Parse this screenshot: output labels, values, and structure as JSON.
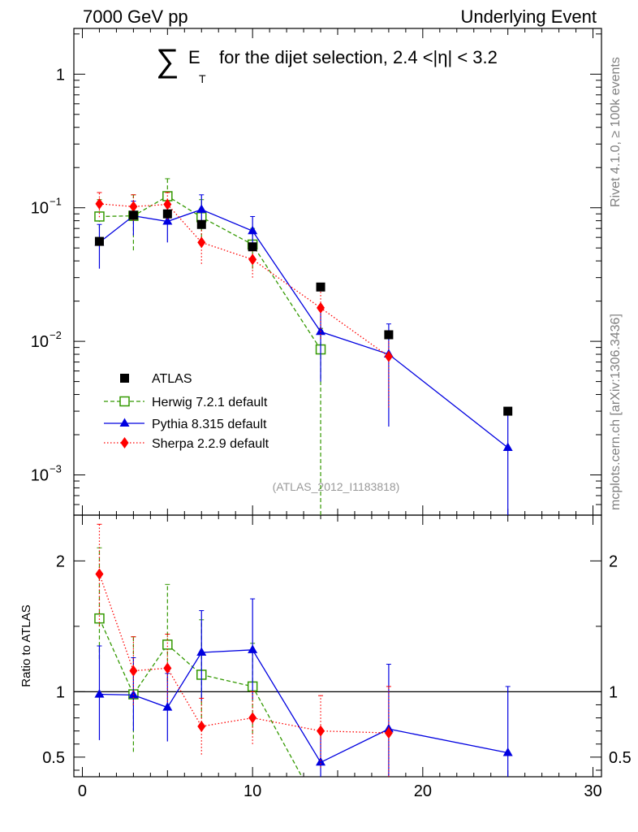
{
  "header": {
    "left": "7000 GeV pp",
    "right": "Underlying Event"
  },
  "title": {
    "sigma": "∑",
    "e": "E",
    "t": "T",
    "rest": "for the dijet selection, 2.4 <|η| < 3.2"
  },
  "side_labels": {
    "rivet": "Rivet 4.1.0, ≥ 100k events",
    "mcplots": "mcplots.cern.ch [arXiv:1306.3436]"
  },
  "watermark": "(ATLAS_2012_I1183818)",
  "chart_data": [
    {
      "type": "scatter",
      "panel": "main",
      "yscale": "log",
      "xlim": [
        -0.5,
        30.5
      ],
      "ylim": [
        0.0005,
        2.2
      ],
      "ytick_values": [
        0.001,
        0.01,
        0.1,
        1
      ],
      "ytick_labels": [
        {
          "base": "10",
          "exp": "−3"
        },
        {
          "base": "10",
          "exp": "−2"
        },
        {
          "base": "10",
          "exp": "−1"
        },
        {
          "base": "1",
          "exp": ""
        }
      ],
      "series": [
        {
          "name": "ATLAS",
          "color": "#000000",
          "marker": "square-filled",
          "x": [
            1,
            3,
            5,
            7,
            10,
            14,
            18,
            25
          ],
          "y": [
            0.056,
            0.088,
            0.09,
            0.075,
            0.051,
            0.0255,
            0.0112,
            0.003
          ]
        },
        {
          "name": "Herwig 7.2.1 default",
          "color": "#339900",
          "marker": "square-open",
          "line": "dashed",
          "x": [
            1,
            3,
            5,
            7,
            10,
            14
          ],
          "y": [
            0.086,
            0.087,
            0.122,
            0.085,
            0.053,
            0.0087
          ],
          "err_lo": [
            0.07,
            0.048,
            0.098,
            0.06,
            0.035,
            0.0005
          ],
          "err_hi": [
            0.115,
            0.125,
            0.165,
            0.115,
            0.07,
            0.0125
          ]
        },
        {
          "name": "Pythia 8.315 default",
          "color": "#0000e0",
          "marker": "triangle",
          "line": "solid",
          "x": [
            1,
            3,
            5,
            7,
            10,
            14,
            18,
            25
          ],
          "y": [
            0.055,
            0.087,
            0.079,
            0.097,
            0.067,
            0.0118,
            0.008,
            0.0016
          ],
          "err_lo": [
            0.035,
            0.062,
            0.055,
            0.07,
            0.048,
            0.005,
            0.0023,
            0.0005
          ],
          "err_hi": [
            0.075,
            0.112,
            0.105,
            0.125,
            0.086,
            0.018,
            0.0135,
            0.0031
          ]
        },
        {
          "name": "Sherpa 2.2.9 default",
          "color": "#ff0000",
          "marker": "diamond",
          "line": "dotted",
          "x": [
            1,
            3,
            5,
            7,
            10,
            14,
            18
          ],
          "y": [
            0.107,
            0.102,
            0.106,
            0.055,
            0.041,
            0.0178,
            0.0077
          ],
          "err_lo": [
            0.085,
            0.08,
            0.082,
            0.038,
            0.03,
            0.0105,
            0.0032
          ],
          "err_hi": [
            0.13,
            0.125,
            0.13,
            0.072,
            0.052,
            0.025,
            0.012
          ]
        }
      ]
    },
    {
      "type": "scatter",
      "panel": "ratio",
      "ylabel": "Ratio to ATLAS",
      "xlim": [
        -0.5,
        30.5
      ],
      "ylim": [
        0.35,
        2.35
      ],
      "ytick_values": [
        0.5,
        1,
        2
      ],
      "ytick_labels": [
        "0.5",
        "1",
        "2"
      ],
      "xtick_values": [
        0,
        10,
        20,
        30
      ],
      "xtick_labels": [
        "0",
        "10",
        "20",
        "30"
      ],
      "reference_line": 1,
      "series": [
        {
          "name": "Herwig 7.2.1 default",
          "color": "#339900",
          "marker": "square-open",
          "line": "dashed",
          "x": [
            1,
            3,
            5,
            7,
            10,
            12.9
          ],
          "y": [
            1.56,
            0.98,
            1.36,
            1.13,
            1.04,
            0.35
          ],
          "err_lo": [
            1.25,
            0.54,
            1.08,
            0.8,
            0.68,
            0.35
          ],
          "err_hi": [
            2.1,
            1.42,
            1.82,
            1.55,
            1.37,
            0.35
          ],
          "marker_count": 5
        },
        {
          "name": "Pythia 8.315 default",
          "color": "#0000e0",
          "marker": "triangle",
          "line": "solid",
          "x": [
            1,
            3,
            5,
            7,
            10,
            14,
            18,
            25
          ],
          "y": [
            0.98,
            0.975,
            0.88,
            1.3,
            1.32,
            0.46,
            0.715,
            0.533
          ],
          "err_lo": [
            0.63,
            0.7,
            0.62,
            0.93,
            0.94,
            0.2,
            0.2,
            0.2
          ],
          "err_hi": [
            1.35,
            1.26,
            1.14,
            1.62,
            1.71,
            0.7,
            1.21,
            1.04
          ]
        },
        {
          "name": "Sherpa 2.2.9 default",
          "color": "#ff0000",
          "marker": "diamond",
          "line": "dotted",
          "x": [
            1,
            3,
            5,
            7,
            10,
            14,
            18
          ],
          "y": [
            1.9,
            1.16,
            1.18,
            0.735,
            0.8,
            0.7,
            0.685
          ],
          "err_lo": [
            1.5,
            0.9,
            0.92,
            0.52,
            0.6,
            0.42,
            0.3
          ],
          "err_hi": [
            2.28,
            1.42,
            1.44,
            0.95,
            1.0,
            0.97,
            1.04
          ]
        }
      ]
    }
  ]
}
